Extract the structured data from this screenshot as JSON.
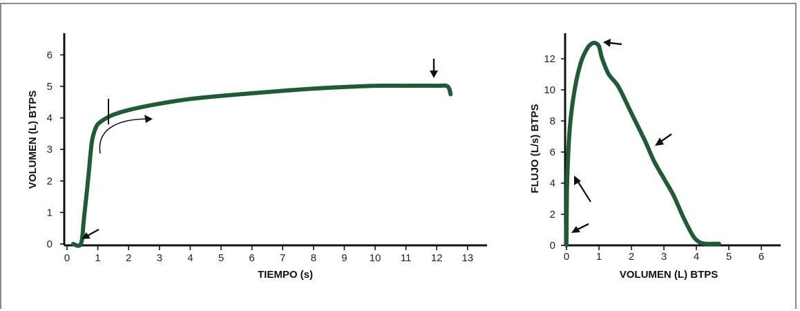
{
  "chart_data": [
    {
      "type": "line",
      "xlabel": "TIEMPO (s)",
      "ylabel": "VOLUMEN (L) BTPS",
      "xlim": [
        0,
        13
      ],
      "ylim": [
        0,
        6
      ],
      "x_ticks": [
        0,
        1,
        2,
        3,
        4,
        5,
        6,
        7,
        8,
        9,
        10,
        11,
        12,
        13
      ],
      "y_ticks": [
        0,
        1,
        2,
        3,
        4,
        5,
        6
      ],
      "grid": false,
      "line_color": "#1e5c35",
      "series": [
        {
          "x": [
            0.2,
            0.45,
            0.55,
            0.7,
            0.8,
            0.9,
            1.0,
            1.2,
            1.5,
            2.0,
            3.0,
            4.0,
            5.0,
            6.0,
            7.0,
            8.0,
            9.0,
            10.0,
            11.0,
            12.0,
            12.35,
            12.45
          ],
          "y": [
            0.0,
            0.0,
            0.8,
            2.2,
            3.2,
            3.6,
            3.8,
            3.95,
            4.1,
            4.25,
            4.45,
            4.6,
            4.7,
            4.78,
            4.86,
            4.93,
            4.98,
            5.02,
            5.02,
            5.02,
            5.0,
            4.75
          ]
        }
      ]
    },
    {
      "type": "line",
      "xlabel": "VOLUMEN (L) BTPS",
      "ylabel": "FLUJO (L/s) BTPS",
      "xlim": [
        0,
        6.5
      ],
      "ylim": [
        0,
        13.5
      ],
      "x_ticks": [
        0,
        1,
        2,
        3,
        4,
        5,
        6
      ],
      "y_ticks": [
        0,
        2,
        4,
        6,
        8,
        10,
        12
      ],
      "grid": false,
      "line_color": "#1e5c35",
      "series": [
        {
          "x": [
            0.0,
            0.0,
            0.02,
            0.1,
            0.25,
            0.45,
            0.65,
            0.8,
            0.9,
            1.0,
            1.1,
            1.3,
            1.6,
            2.0,
            2.4,
            2.7,
            3.0,
            3.3,
            3.6,
            3.9,
            4.1,
            4.3,
            4.5,
            4.7
          ],
          "y": [
            0.0,
            0.5,
            4.0,
            7.5,
            10.0,
            11.8,
            12.7,
            13.0,
            13.0,
            12.8,
            12.0,
            11.0,
            10.2,
            8.5,
            6.8,
            5.4,
            4.3,
            3.2,
            1.8,
            0.6,
            0.2,
            0.1,
            0.1,
            0.1
          ]
        }
      ]
    }
  ]
}
